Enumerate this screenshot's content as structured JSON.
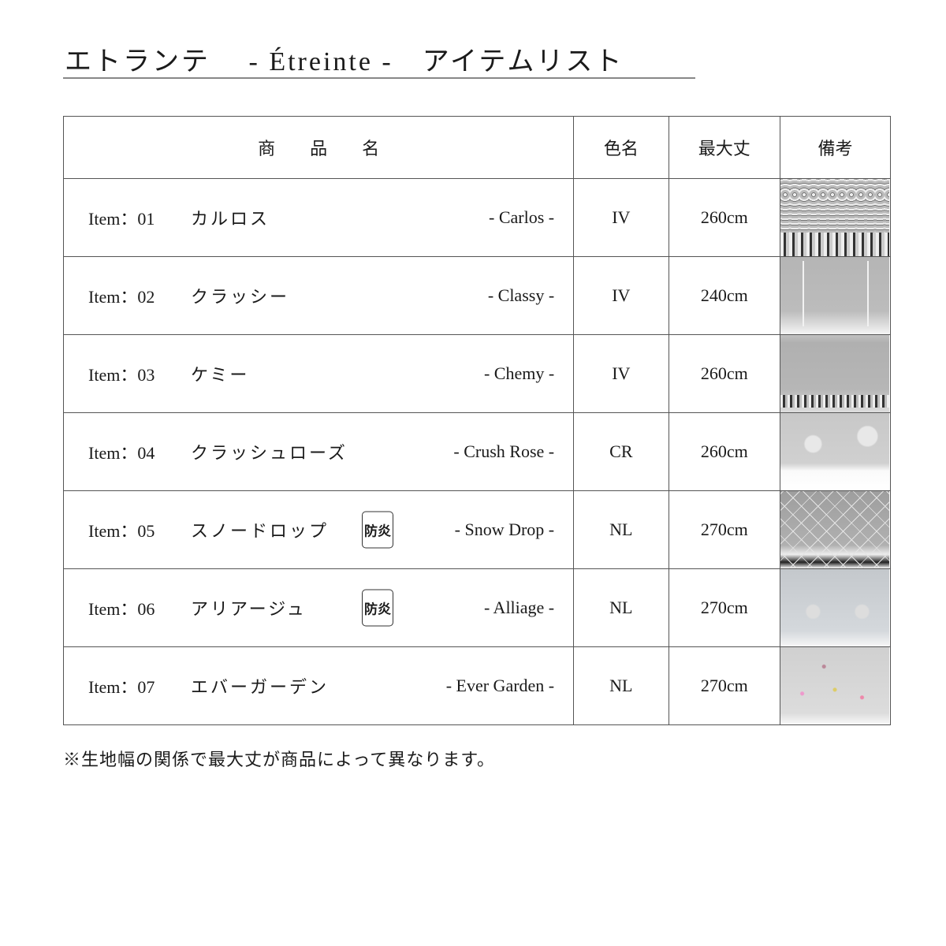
{
  "title": "エトランテ　 - Étreinte -　アイテムリスト",
  "headers": {
    "name": "商　　品　　名",
    "color": "色名",
    "length": "最大丈",
    "notes": "備考"
  },
  "items": [
    {
      "item": "Item：01",
      "jp": "カルロス",
      "en": "- Carlos -",
      "color": "IV",
      "length": "260cm",
      "badge": ""
    },
    {
      "item": "Item：02",
      "jp": "クラッシー",
      "en": "- Classy -",
      "color": "IV",
      "length": "240cm",
      "badge": ""
    },
    {
      "item": "Item：03",
      "jp": "ケミー",
      "en": "- Chemy -",
      "color": "IV",
      "length": "260cm",
      "badge": ""
    },
    {
      "item": "Item：04",
      "jp": "クラッシュローズ",
      "en": "- Crush Rose -",
      "color": "CR",
      "length": "260cm",
      "badge": ""
    },
    {
      "item": "Item：05",
      "jp": "スノードロップ",
      "en": "- Snow Drop -",
      "color": "NL",
      "length": "270cm",
      "badge": "防炎"
    },
    {
      "item": "Item：06",
      "jp": "アリアージュ",
      "en": "- Alliage -",
      "color": "NL",
      "length": "270cm",
      "badge": "防炎"
    },
    {
      "item": "Item：07",
      "jp": "エバーガーデン",
      "en": "- Ever Garden -",
      "color": "NL",
      "length": "270cm",
      "badge": ""
    }
  ],
  "note": "※生地幅の関係で最大丈が商品によって異なります。"
}
